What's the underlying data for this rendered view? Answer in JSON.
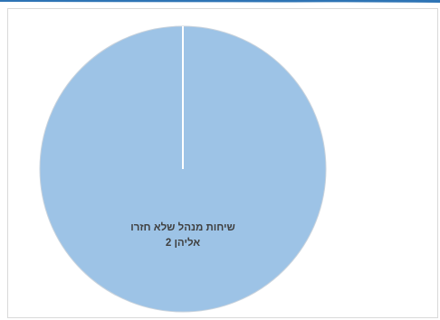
{
  "colors": {
    "accent_strip": "#2e74b5",
    "slice_fill": "#9dc3e6",
    "slice_edge": "#ffffff",
    "frame_border": "#d9d9d9",
    "label_text": "#404040"
  },
  "chart_data": {
    "type": "pie",
    "title": "",
    "categories": [
      "שיחות מנהל שלא חזרו אליהן"
    ],
    "values": [
      2
    ],
    "data_labels": [
      {
        "line1": "שיחות מנהל שלא חזרו",
        "line2": "אליהן  2"
      }
    ],
    "legend": "none"
  }
}
